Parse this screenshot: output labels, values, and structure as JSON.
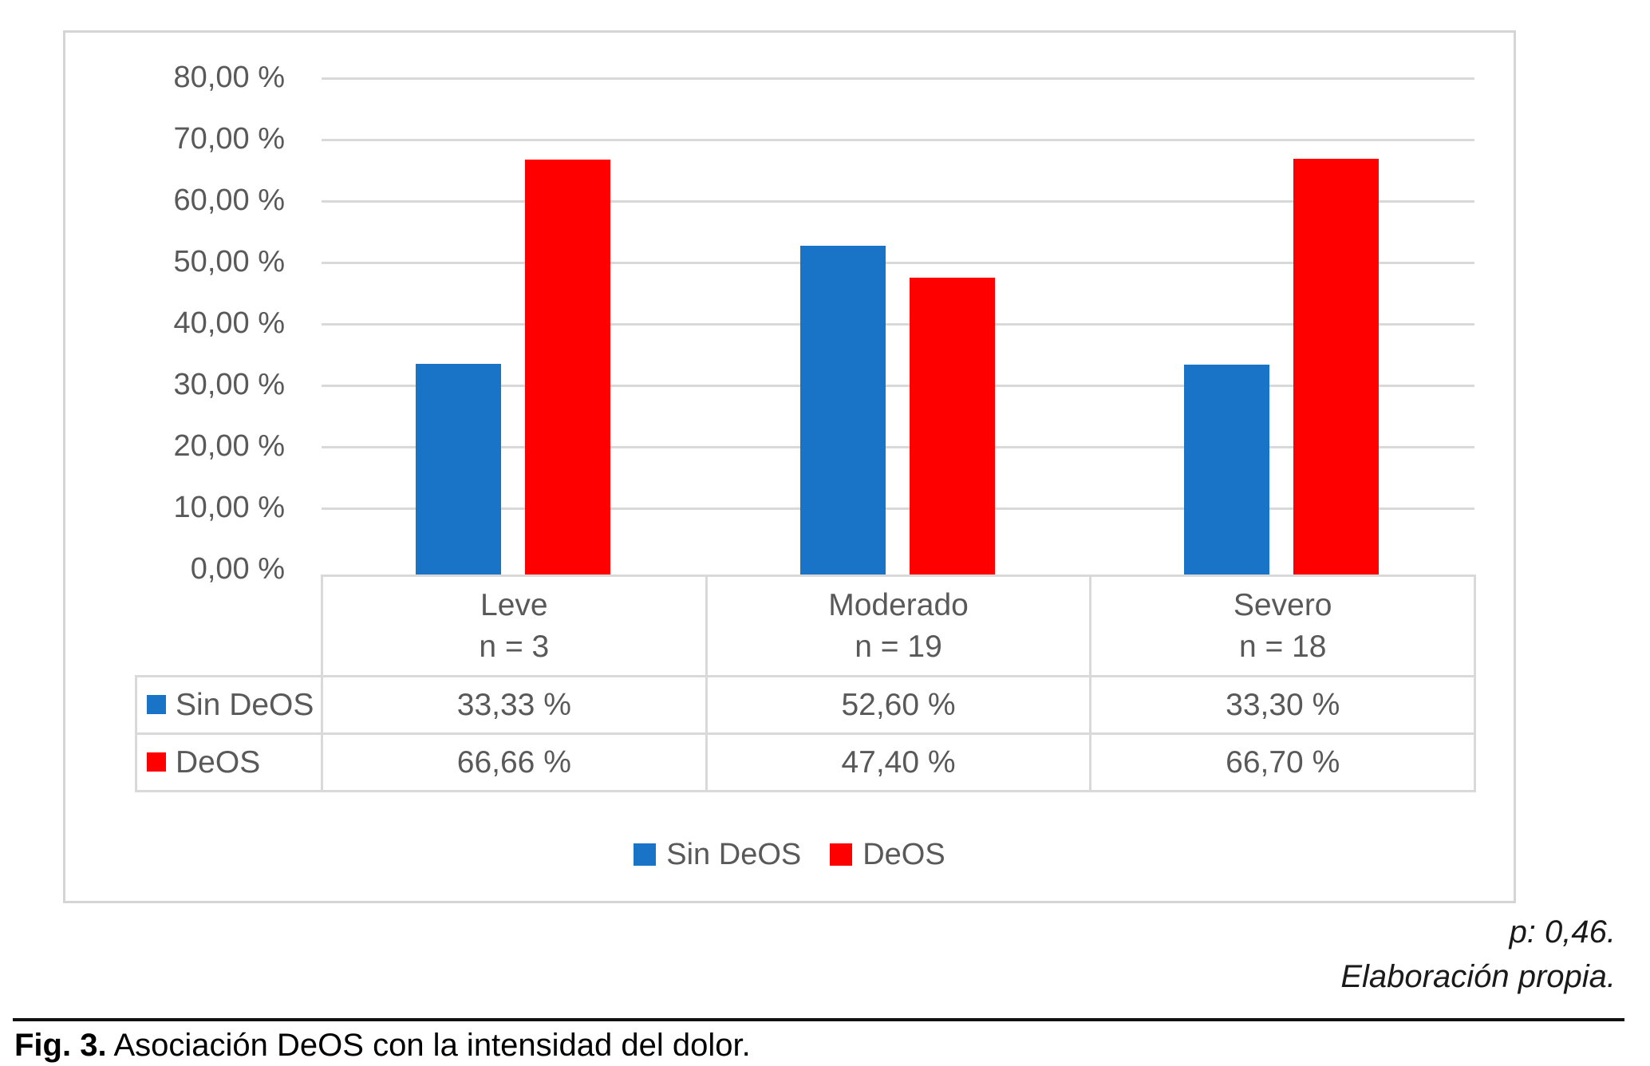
{
  "chart_data": {
    "type": "bar",
    "title": "",
    "categories": [
      "Leve",
      "Moderado",
      "Severo"
    ],
    "category_counts": [
      "n = 3",
      "n = 19",
      "n = 18"
    ],
    "series": [
      {
        "name": "Sin DeOS",
        "color": "#1974c7",
        "values": [
          33.33,
          52.6,
          33.3
        ],
        "labels": [
          "33,33 %",
          "52,60 %",
          "33,30 %"
        ]
      },
      {
        "name": "DeOS",
        "color": "#ff0000",
        "values": [
          66.66,
          47.4,
          66.7
        ],
        "labels": [
          "66,66 %",
          "47,40 %",
          "66,70 %"
        ]
      }
    ],
    "y_axis": {
      "min": 0,
      "max": 80,
      "step": 10,
      "tick_labels": [
        "80,00 %",
        "70,00 %",
        "60,00 %",
        "50,00 %",
        "40,00 %",
        "30,00 %",
        "20,00 %",
        "10,00 %",
        "0,00 %"
      ]
    },
    "legend": [
      "Sin DeOS",
      "DeOS"
    ],
    "legend_position": "bottom",
    "grid": true,
    "gridline_color": "#d9d9d9",
    "data_table_shown": true
  },
  "annotations": {
    "p_value": "p: 0,46.",
    "source": "Elaboración propia."
  },
  "caption": {
    "label": "Fig. 3.",
    "text": " Asociación DeOS con la intensidad del dolor."
  }
}
